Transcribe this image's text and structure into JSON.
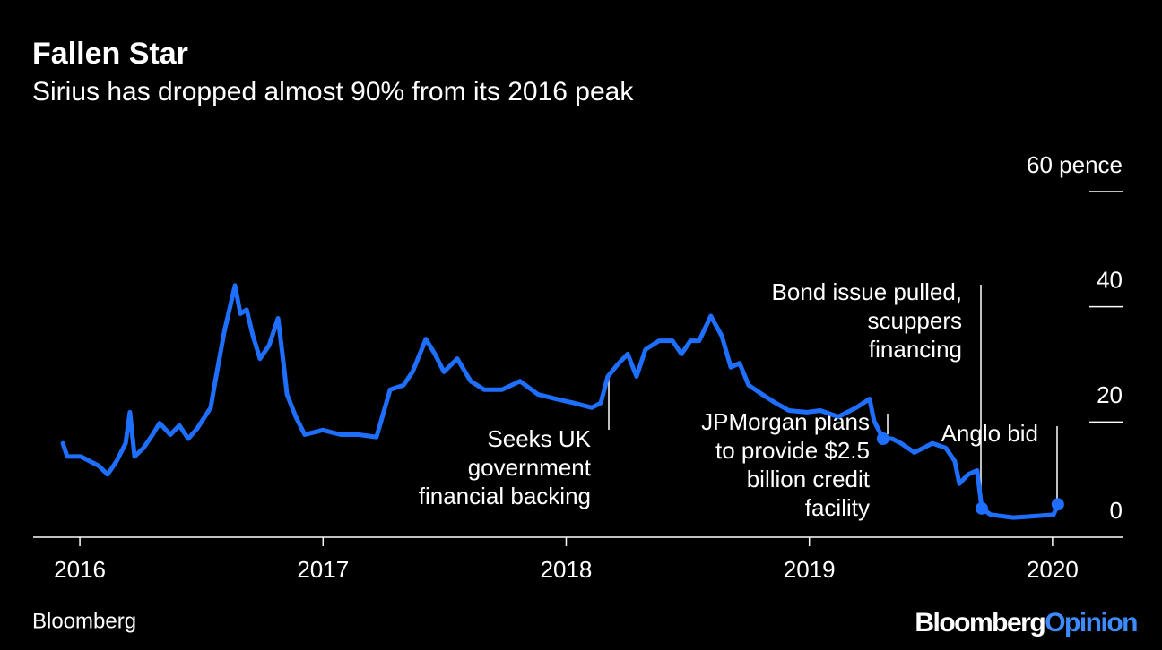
{
  "chart_data": {
    "type": "line",
    "title": "Fallen Star",
    "subtitle": "Sirius has dropped almost 90% from its 2016 peak",
    "source": "Bloomberg",
    "brand": [
      "Bloomberg",
      "Opinion"
    ],
    "color": "#1f6fff",
    "xlim": [
      2015.808,
      2020.288
    ],
    "xticks": [
      2016,
      2017,
      2018,
      2019,
      2020
    ],
    "ylim": [
      0,
      60
    ],
    "yticks": [
      0,
      20,
      40,
      {
        "value": 60,
        "label": "60 pence"
      }
    ],
    "x": [
      2015.93,
      2015.948,
      2016.004,
      2016.041,
      2016.077,
      2016.114,
      2016.151,
      2016.188,
      2016.206,
      2016.225,
      2016.262,
      2016.299,
      2016.328,
      2016.372,
      2016.409,
      2016.446,
      2016.483,
      2016.538,
      2016.557,
      2016.594,
      2016.638,
      2016.66,
      2016.686,
      2016.712,
      2016.741,
      2016.778,
      2016.815,
      2016.833,
      2016.852,
      2016.888,
      2016.925,
      2016.999,
      2017.073,
      2017.147,
      2017.22,
      2017.239,
      2017.276,
      2017.331,
      2017.368,
      2017.423,
      2017.46,
      2017.497,
      2017.552,
      2017.607,
      2017.663,
      2017.736,
      2017.81,
      2017.884,
      2017.958,
      2018.031,
      2018.105,
      2018.142,
      2018.171,
      2018.216,
      2018.253,
      2018.289,
      2018.326,
      2018.382,
      2018.437,
      2018.474,
      2018.511,
      2018.547,
      2018.595,
      2018.64,
      2018.677,
      2018.713,
      2018.75,
      2018.806,
      2018.861,
      2018.916,
      2018.99,
      2019.045,
      2019.119,
      2019.193,
      2019.248,
      2019.266,
      2019.303,
      2019.34,
      2019.377,
      2019.432,
      2019.469,
      2019.506,
      2019.561,
      2019.598,
      2019.617,
      2019.653,
      2019.69,
      2019.709,
      2019.746,
      2019.838,
      2019.912,
      2020.004,
      2020.022
    ],
    "values": [
      16.3,
      14.0,
      14.0,
      13.2,
      12.4,
      10.9,
      13.2,
      16.3,
      21.7,
      14.0,
      15.5,
      17.8,
      19.8,
      17.8,
      19.4,
      17.1,
      18.9,
      22.5,
      27.1,
      35.7,
      43.7,
      38.8,
      39.5,
      34.9,
      31.0,
      33.3,
      38.0,
      31.8,
      24.8,
      20.9,
      17.8,
      18.6,
      17.8,
      17.8,
      17.4,
      20.2,
      25.6,
      26.4,
      28.7,
      34.4,
      31.8,
      28.7,
      31.0,
      27.1,
      25.6,
      25.6,
      27.1,
      24.8,
      24.0,
      23.3,
      22.5,
      23.3,
      27.9,
      30.2,
      31.8,
      27.9,
      32.6,
      34.1,
      34.1,
      31.8,
      34.1,
      34.1,
      38.4,
      34.9,
      29.5,
      30.2,
      26.4,
      24.8,
      23.3,
      22.0,
      21.7,
      22.0,
      20.9,
      22.5,
      24.0,
      20.2,
      17.1,
      17.1,
      16.3,
      14.7,
      15.5,
      16.3,
      15.5,
      13.2,
      9.3,
      10.9,
      11.6,
      5.0,
      3.9,
      3.4,
      3.6,
      3.9,
      5.7
    ],
    "annotations": [
      [
        "Seeks UK",
        "government",
        "financial backing"
      ],
      [
        "Bond issue pulled,",
        "scuppers",
        "financing"
      ],
      [
        "JPMorgan plans",
        "to provide $2.5",
        "billion credit",
        "facility"
      ],
      [
        "Anglo bid"
      ]
    ]
  }
}
